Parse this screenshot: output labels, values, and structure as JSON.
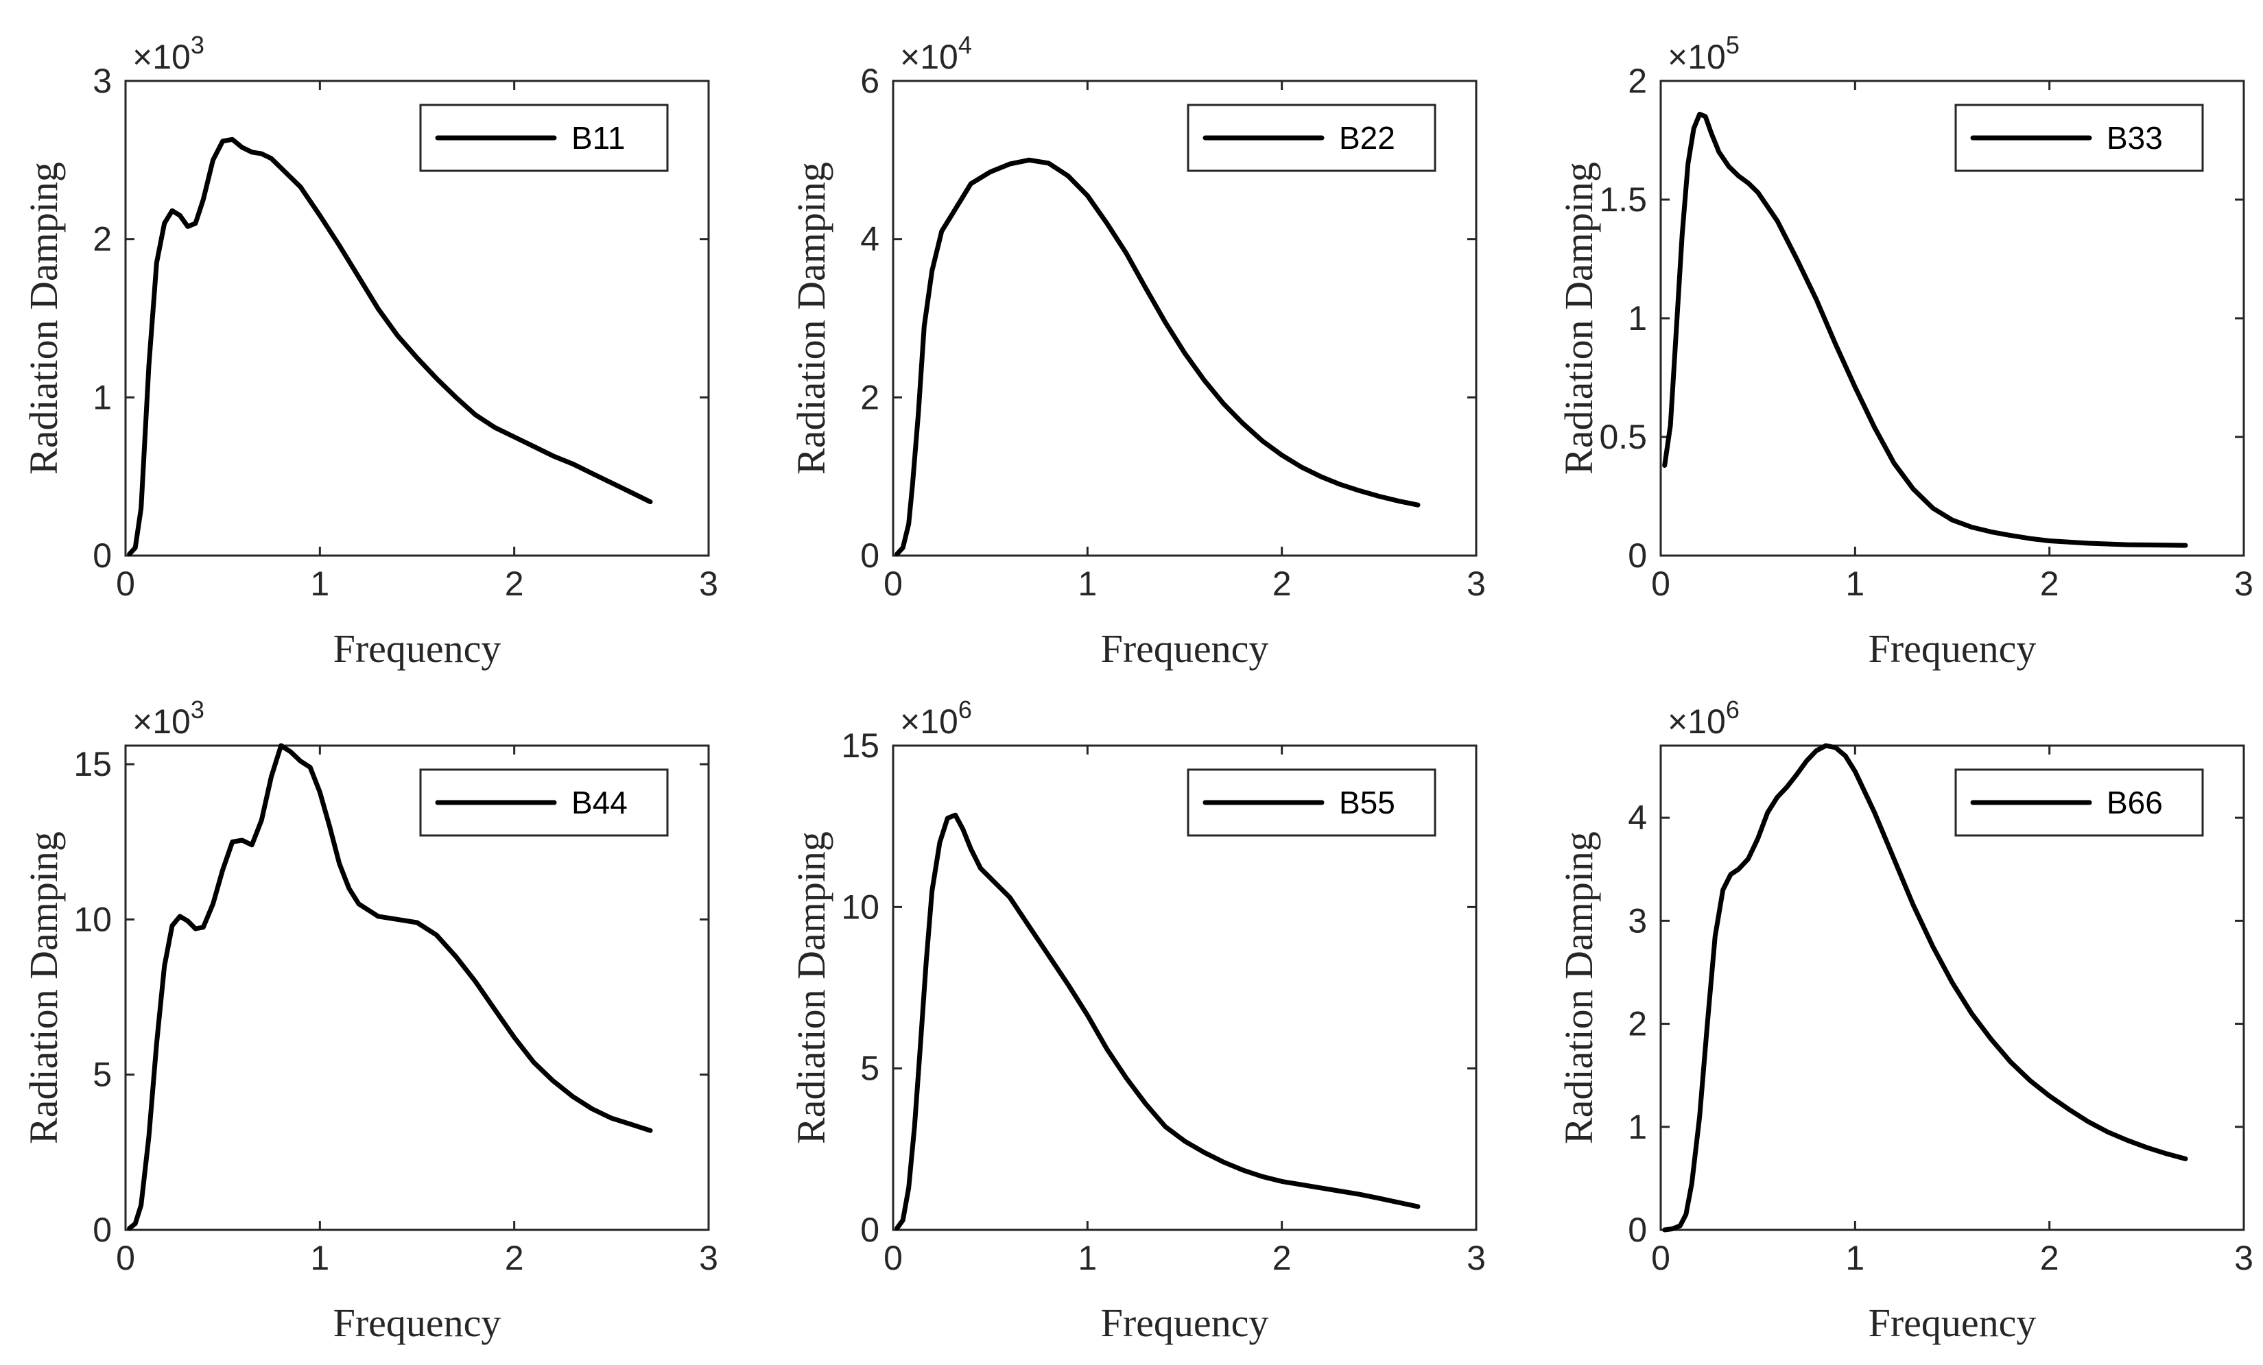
{
  "chart_data": [
    {
      "type": "line",
      "title": "",
      "xlabel": "Frequency",
      "ylabel": "Radiation Damping",
      "xlim": [
        0,
        3
      ],
      "ylim": [
        0,
        3
      ],
      "xticks": [
        "0",
        "1",
        "2",
        "3"
      ],
      "xtick_values": [
        0,
        1,
        2,
        3
      ],
      "yticks": [
        "0",
        "1",
        "2",
        "3"
      ],
      "ytick_values": [
        0,
        1,
        2,
        3
      ],
      "exponent_prefix": "×10",
      "exponent": "3",
      "legend": "top-right",
      "series": [
        {
          "name": "B11",
          "color": "#000000",
          "x": [
            0.02,
            0.05,
            0.08,
            0.12,
            0.16,
            0.2,
            0.24,
            0.28,
            0.32,
            0.36,
            0.4,
            0.45,
            0.5,
            0.55,
            0.6,
            0.65,
            0.7,
            0.75,
            0.8,
            0.9,
            1.0,
            1.1,
            1.2,
            1.3,
            1.4,
            1.5,
            1.6,
            1.7,
            1.8,
            1.9,
            2.0,
            2.1,
            2.2,
            2.3,
            2.4,
            2.5,
            2.6,
            2.7
          ],
          "y": [
            0.01,
            0.05,
            0.3,
            1.2,
            1.85,
            2.1,
            2.18,
            2.15,
            2.08,
            2.1,
            2.25,
            2.5,
            2.62,
            2.63,
            2.58,
            2.55,
            2.54,
            2.51,
            2.45,
            2.33,
            2.15,
            1.96,
            1.76,
            1.56,
            1.39,
            1.25,
            1.12,
            1.0,
            0.89,
            0.81,
            0.75,
            0.69,
            0.63,
            0.58,
            0.52,
            0.46,
            0.4,
            0.34
          ]
        }
      ]
    },
    {
      "type": "line",
      "title": "",
      "xlabel": "Frequency",
      "ylabel": "Radiation Damping",
      "xlim": [
        0,
        3
      ],
      "ylim": [
        0,
        6
      ],
      "xticks": [
        "0",
        "1",
        "2",
        "3"
      ],
      "xtick_values": [
        0,
        1,
        2,
        3
      ],
      "yticks": [
        "0",
        "2",
        "4",
        "6"
      ],
      "ytick_values": [
        0,
        2,
        4,
        6
      ],
      "exponent_prefix": "×10",
      "exponent": "4",
      "legend": "top-right",
      "series": [
        {
          "name": "B22",
          "color": "#000000",
          "x": [
            0.02,
            0.05,
            0.08,
            0.1,
            0.13,
            0.16,
            0.2,
            0.25,
            0.3,
            0.35,
            0.4,
            0.5,
            0.6,
            0.7,
            0.8,
            0.9,
            1.0,
            1.1,
            1.2,
            1.3,
            1.4,
            1.5,
            1.6,
            1.7,
            1.8,
            1.9,
            2.0,
            2.1,
            2.2,
            2.3,
            2.4,
            2.5,
            2.6,
            2.7
          ],
          "y": [
            0.02,
            0.1,
            0.4,
            0.9,
            1.8,
            2.9,
            3.6,
            4.1,
            4.3,
            4.5,
            4.7,
            4.85,
            4.95,
            5.0,
            4.96,
            4.8,
            4.55,
            4.2,
            3.82,
            3.38,
            2.95,
            2.56,
            2.22,
            1.92,
            1.67,
            1.45,
            1.27,
            1.12,
            1.0,
            0.9,
            0.82,
            0.75,
            0.69,
            0.64
          ]
        }
      ]
    },
    {
      "type": "line",
      "title": "",
      "xlabel": "Frequency",
      "ylabel": "Radiation Damping",
      "xlim": [
        0,
        3
      ],
      "ylim": [
        0,
        2
      ],
      "xticks": [
        "0",
        "1",
        "2",
        "3"
      ],
      "xtick_values": [
        0,
        1,
        2,
        3
      ],
      "yticks": [
        "0",
        "0.5",
        "1",
        "1.5",
        "2"
      ],
      "ytick_values": [
        0,
        0.5,
        1,
        1.5,
        2
      ],
      "exponent_prefix": "×10",
      "exponent": "5",
      "legend": "top-right",
      "series": [
        {
          "name": "B33",
          "color": "#000000",
          "x": [
            0.02,
            0.05,
            0.08,
            0.11,
            0.14,
            0.17,
            0.2,
            0.23,
            0.26,
            0.3,
            0.35,
            0.4,
            0.45,
            0.5,
            0.6,
            0.7,
            0.8,
            0.9,
            1.0,
            1.1,
            1.2,
            1.3,
            1.4,
            1.5,
            1.6,
            1.7,
            1.8,
            1.9,
            2.0,
            2.2,
            2.4,
            2.6,
            2.7
          ],
          "y": [
            0.38,
            0.55,
            0.95,
            1.35,
            1.65,
            1.8,
            1.86,
            1.85,
            1.78,
            1.7,
            1.64,
            1.6,
            1.57,
            1.53,
            1.41,
            1.25,
            1.08,
            0.89,
            0.71,
            0.54,
            0.39,
            0.28,
            0.2,
            0.15,
            0.12,
            0.1,
            0.085,
            0.072,
            0.062,
            0.052,
            0.046,
            0.044,
            0.043
          ]
        }
      ]
    },
    {
      "type": "line",
      "title": "",
      "xlabel": "Frequency",
      "ylabel": "Radiation Damping",
      "xlim": [
        0,
        3
      ],
      "ylim": [
        0,
        15.6
      ],
      "xticks": [
        "0",
        "1",
        "2",
        "3"
      ],
      "xtick_values": [
        0,
        1,
        2,
        3
      ],
      "yticks": [
        "0",
        "5",
        "10",
        "15"
      ],
      "ytick_values": [
        0,
        5,
        10,
        15
      ],
      "exponent_prefix": "×10",
      "exponent": "3",
      "legend": "top-right",
      "series": [
        {
          "name": "B44",
          "color": "#000000",
          "x": [
            0.02,
            0.05,
            0.08,
            0.12,
            0.16,
            0.2,
            0.24,
            0.28,
            0.32,
            0.36,
            0.4,
            0.45,
            0.5,
            0.55,
            0.6,
            0.65,
            0.7,
            0.75,
            0.8,
            0.85,
            0.9,
            0.95,
            1.0,
            1.05,
            1.1,
            1.15,
            1.2,
            1.3,
            1.4,
            1.5,
            1.6,
            1.7,
            1.8,
            1.9,
            2.0,
            2.1,
            2.2,
            2.3,
            2.4,
            2.5,
            2.6,
            2.7
          ],
          "y": [
            0.05,
            0.2,
            0.8,
            3.0,
            6.0,
            8.5,
            9.8,
            10.1,
            9.95,
            9.7,
            9.75,
            10.5,
            11.6,
            12.5,
            12.55,
            12.4,
            13.2,
            14.6,
            15.6,
            15.4,
            15.1,
            14.9,
            14.1,
            13.0,
            11.8,
            11.0,
            10.5,
            10.1,
            10.0,
            9.9,
            9.5,
            8.8,
            8.0,
            7.1,
            6.2,
            5.4,
            4.8,
            4.3,
            3.9,
            3.6,
            3.4,
            3.2
          ]
        }
      ]
    },
    {
      "type": "line",
      "title": "",
      "xlabel": "Frequency",
      "ylabel": "Radiation Damping",
      "xlim": [
        0,
        3
      ],
      "ylim": [
        0,
        15
      ],
      "xticks": [
        "0",
        "1",
        "2",
        "3"
      ],
      "xtick_values": [
        0,
        1,
        2,
        3
      ],
      "yticks": [
        "0",
        "5",
        "10",
        "15"
      ],
      "ytick_values": [
        0,
        5,
        10,
        15
      ],
      "exponent_prefix": "×10",
      "exponent": "6",
      "legend": "top-right",
      "series": [
        {
          "name": "B55",
          "color": "#000000",
          "x": [
            0.02,
            0.05,
            0.08,
            0.11,
            0.14,
            0.17,
            0.2,
            0.24,
            0.28,
            0.32,
            0.36,
            0.4,
            0.45,
            0.5,
            0.6,
            0.7,
            0.8,
            0.9,
            1.0,
            1.1,
            1.2,
            1.3,
            1.4,
            1.5,
            1.6,
            1.7,
            1.8,
            1.9,
            2.0,
            2.1,
            2.2,
            2.3,
            2.4,
            2.5,
            2.6,
            2.7
          ],
          "y": [
            0.05,
            0.3,
            1.3,
            3.2,
            5.7,
            8.3,
            10.5,
            12.0,
            12.75,
            12.85,
            12.4,
            11.8,
            11.2,
            10.9,
            10.3,
            9.4,
            8.5,
            7.6,
            6.65,
            5.6,
            4.7,
            3.9,
            3.2,
            2.75,
            2.4,
            2.1,
            1.85,
            1.65,
            1.5,
            1.4,
            1.3,
            1.2,
            1.1,
            0.98,
            0.85,
            0.72
          ]
        }
      ]
    },
    {
      "type": "line",
      "title": "",
      "xlabel": "Frequency",
      "ylabel": "Radiation Damping",
      "xlim": [
        0,
        3
      ],
      "ylim": [
        0,
        4.7
      ],
      "xticks": [
        "0",
        "1",
        "2",
        "3"
      ],
      "xtick_values": [
        0,
        1,
        2,
        3
      ],
      "yticks": [
        "0",
        "1",
        "2",
        "3",
        "4"
      ],
      "ytick_values": [
        0,
        1,
        2,
        3,
        4
      ],
      "exponent_prefix": "×10",
      "exponent": "6",
      "legend": "top-right",
      "series": [
        {
          "name": "B66",
          "color": "#000000",
          "x": [
            0.02,
            0.06,
            0.1,
            0.13,
            0.16,
            0.2,
            0.24,
            0.28,
            0.32,
            0.36,
            0.4,
            0.45,
            0.5,
            0.55,
            0.6,
            0.65,
            0.7,
            0.75,
            0.8,
            0.85,
            0.9,
            0.95,
            1.0,
            1.05,
            1.1,
            1.2,
            1.3,
            1.4,
            1.5,
            1.6,
            1.7,
            1.8,
            1.9,
            2.0,
            2.1,
            2.2,
            2.3,
            2.4,
            2.5,
            2.6,
            2.7
          ],
          "y": [
            0.0,
            0.01,
            0.04,
            0.15,
            0.45,
            1.1,
            2.0,
            2.85,
            3.3,
            3.45,
            3.5,
            3.6,
            3.8,
            4.05,
            4.2,
            4.3,
            4.42,
            4.55,
            4.65,
            4.7,
            4.68,
            4.6,
            4.45,
            4.25,
            4.05,
            3.6,
            3.15,
            2.75,
            2.4,
            2.1,
            1.85,
            1.63,
            1.45,
            1.3,
            1.17,
            1.05,
            0.95,
            0.87,
            0.8,
            0.74,
            0.69
          ]
        }
      ]
    }
  ]
}
